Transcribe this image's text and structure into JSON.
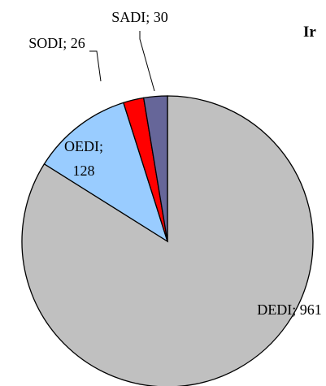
{
  "chart_data": {
    "type": "pie",
    "title": "Ir",
    "values": [
      961,
      128,
      26,
      30
    ],
    "value_labels": [
      "DEDI; 961",
      "OEDI; 128",
      "SODI; 26",
      "SADI; 30"
    ],
    "colors": [
      "#c0c0c0",
      "#99ccff",
      "#ff0000",
      "#666699"
    ]
  }
}
